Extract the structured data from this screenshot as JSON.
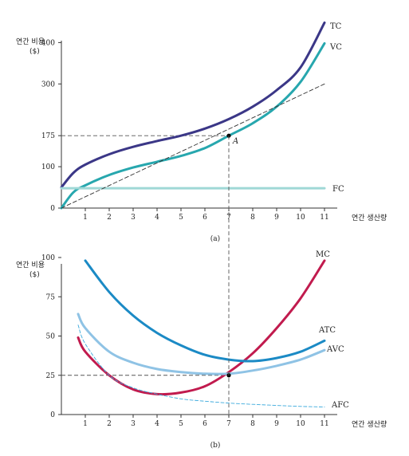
{
  "chart_data": [
    {
      "panel_label": "(a)",
      "type": "line",
      "ylabel": "연간 비용",
      "yunit": "($)",
      "xlabel": "연간 생산량",
      "xlim": [
        0,
        11
      ],
      "ylim": [
        0,
        420
      ],
      "xticks": [
        1,
        2,
        3,
        4,
        5,
        6,
        7,
        8,
        9,
        10,
        11
      ],
      "yticks": [
        0,
        100,
        175,
        300,
        400
      ],
      "point_label": "A",
      "guide_x": 7,
      "guide_y": 175,
      "series": [
        {
          "name": "TC",
          "color": "#3b3787",
          "x": [
            0,
            0.5,
            1,
            2,
            3,
            4,
            5,
            6,
            7,
            8,
            9,
            10,
            11
          ],
          "y": [
            50,
            85,
            105,
            130,
            148,
            162,
            175,
            192,
            215,
            245,
            285,
            340,
            448
          ]
        },
        {
          "name": "VC",
          "color": "#27a7ae",
          "x": [
            0,
            0.5,
            1,
            2,
            3,
            4,
            5,
            6,
            7,
            8,
            9,
            10,
            11
          ],
          "y": [
            0,
            38,
            55,
            80,
            98,
            112,
            126,
            145,
            175,
            205,
            245,
            305,
            398
          ]
        },
        {
          "name": "FC",
          "color": "#9fd8d6",
          "x": [
            0,
            11
          ],
          "y": [
            48,
            48
          ]
        },
        {
          "name": "",
          "style": "dashed",
          "color": "#333333",
          "x": [
            0,
            11
          ],
          "y": [
            0,
            300
          ]
        }
      ]
    },
    {
      "panel_label": "(b)",
      "type": "line",
      "ylabel": "연간 비용",
      "yunit": "($)",
      "xlabel": "연간 생산량",
      "xlim": [
        0,
        11
      ],
      "ylim": [
        0,
        100
      ],
      "xticks": [
        1,
        2,
        3,
        4,
        5,
        6,
        7,
        8,
        9,
        10,
        11
      ],
      "yticks": [
        0,
        25,
        50,
        75,
        100
      ],
      "guide_x": 7,
      "guide_y": 25,
      "series": [
        {
          "name": "MC",
          "color": "#c11b4e",
          "x": [
            0.7,
            1,
            2,
            3,
            4,
            5,
            6,
            7,
            8,
            9,
            10,
            11
          ],
          "y": [
            49,
            40,
            25,
            16,
            13,
            14,
            18,
            27,
            39,
            55,
            74,
            98
          ]
        },
        {
          "name": "ATC",
          "color": "#1b8ac5",
          "x": [
            1,
            2,
            3,
            4,
            5,
            6,
            7,
            8,
            9,
            10,
            11
          ],
          "y": [
            98,
            78,
            63,
            52,
            44,
            38,
            35,
            34,
            36,
            40,
            47
          ]
        },
        {
          "name": "AVC",
          "color": "#8fc3e5",
          "x": [
            0.7,
            1,
            2,
            3,
            4,
            5,
            6,
            7,
            8,
            9,
            10,
            11
          ],
          "y": [
            64,
            55,
            40,
            33,
            29,
            27,
            26,
            26,
            28,
            31,
            35,
            41
          ]
        },
        {
          "name": "AFC",
          "style": "dashed",
          "color": "#3aa9dc",
          "x": [
            0.7,
            1,
            2,
            3,
            4,
            5,
            6,
            7,
            8,
            9,
            10,
            11
          ],
          "y": [
            57,
            45,
            25,
            17,
            13,
            10,
            8.5,
            7.3,
            6.5,
            5.8,
            5.2,
            4.8
          ]
        }
      ]
    }
  ]
}
